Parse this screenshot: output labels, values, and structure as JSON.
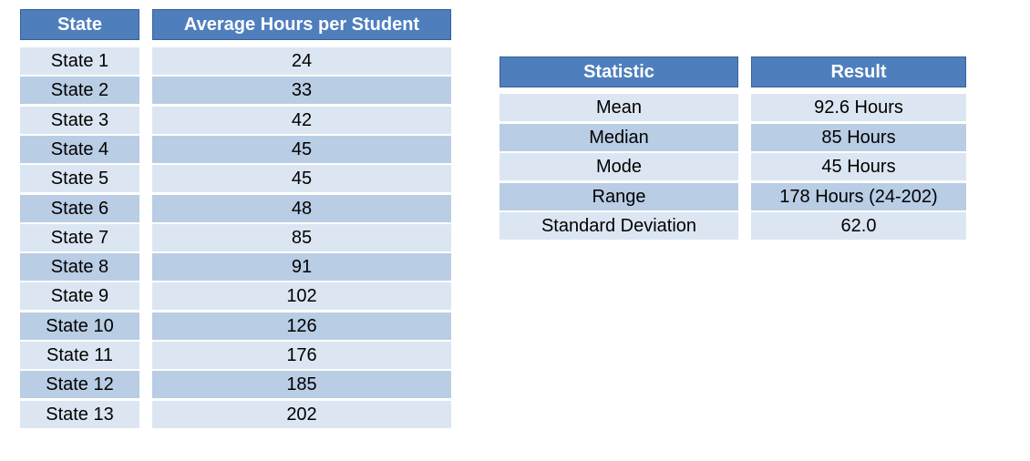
{
  "chart_data": {
    "type": "table",
    "tables": [
      {
        "columns": [
          "State",
          "Average Hours per Student"
        ],
        "rows": [
          [
            "State 1",
            "24"
          ],
          [
            "State 2",
            "33"
          ],
          [
            "State 3",
            "42"
          ],
          [
            "State 4",
            "45"
          ],
          [
            "State 5",
            "45"
          ],
          [
            "State 6",
            "48"
          ],
          [
            "State 7",
            "85"
          ],
          [
            "State 8",
            "91"
          ],
          [
            "State 9",
            "102"
          ],
          [
            "State 10",
            "126"
          ],
          [
            "State 11",
            "176"
          ],
          [
            "State 12",
            "185"
          ],
          [
            "State 13",
            "202"
          ]
        ]
      },
      {
        "columns": [
          "Statistic",
          "Result"
        ],
        "rows": [
          [
            "Mean",
            "92.6 Hours"
          ],
          [
            "Median",
            "85 Hours"
          ],
          [
            "Mode",
            "45 Hours"
          ],
          [
            "Range",
            "178 Hours (24-202)"
          ],
          [
            "Standard Deviation",
            "62.0"
          ]
        ]
      }
    ]
  },
  "colors": {
    "header": "#4f7ebd",
    "row_light": "#dce6f2",
    "row_dark": "#b9cde5"
  }
}
